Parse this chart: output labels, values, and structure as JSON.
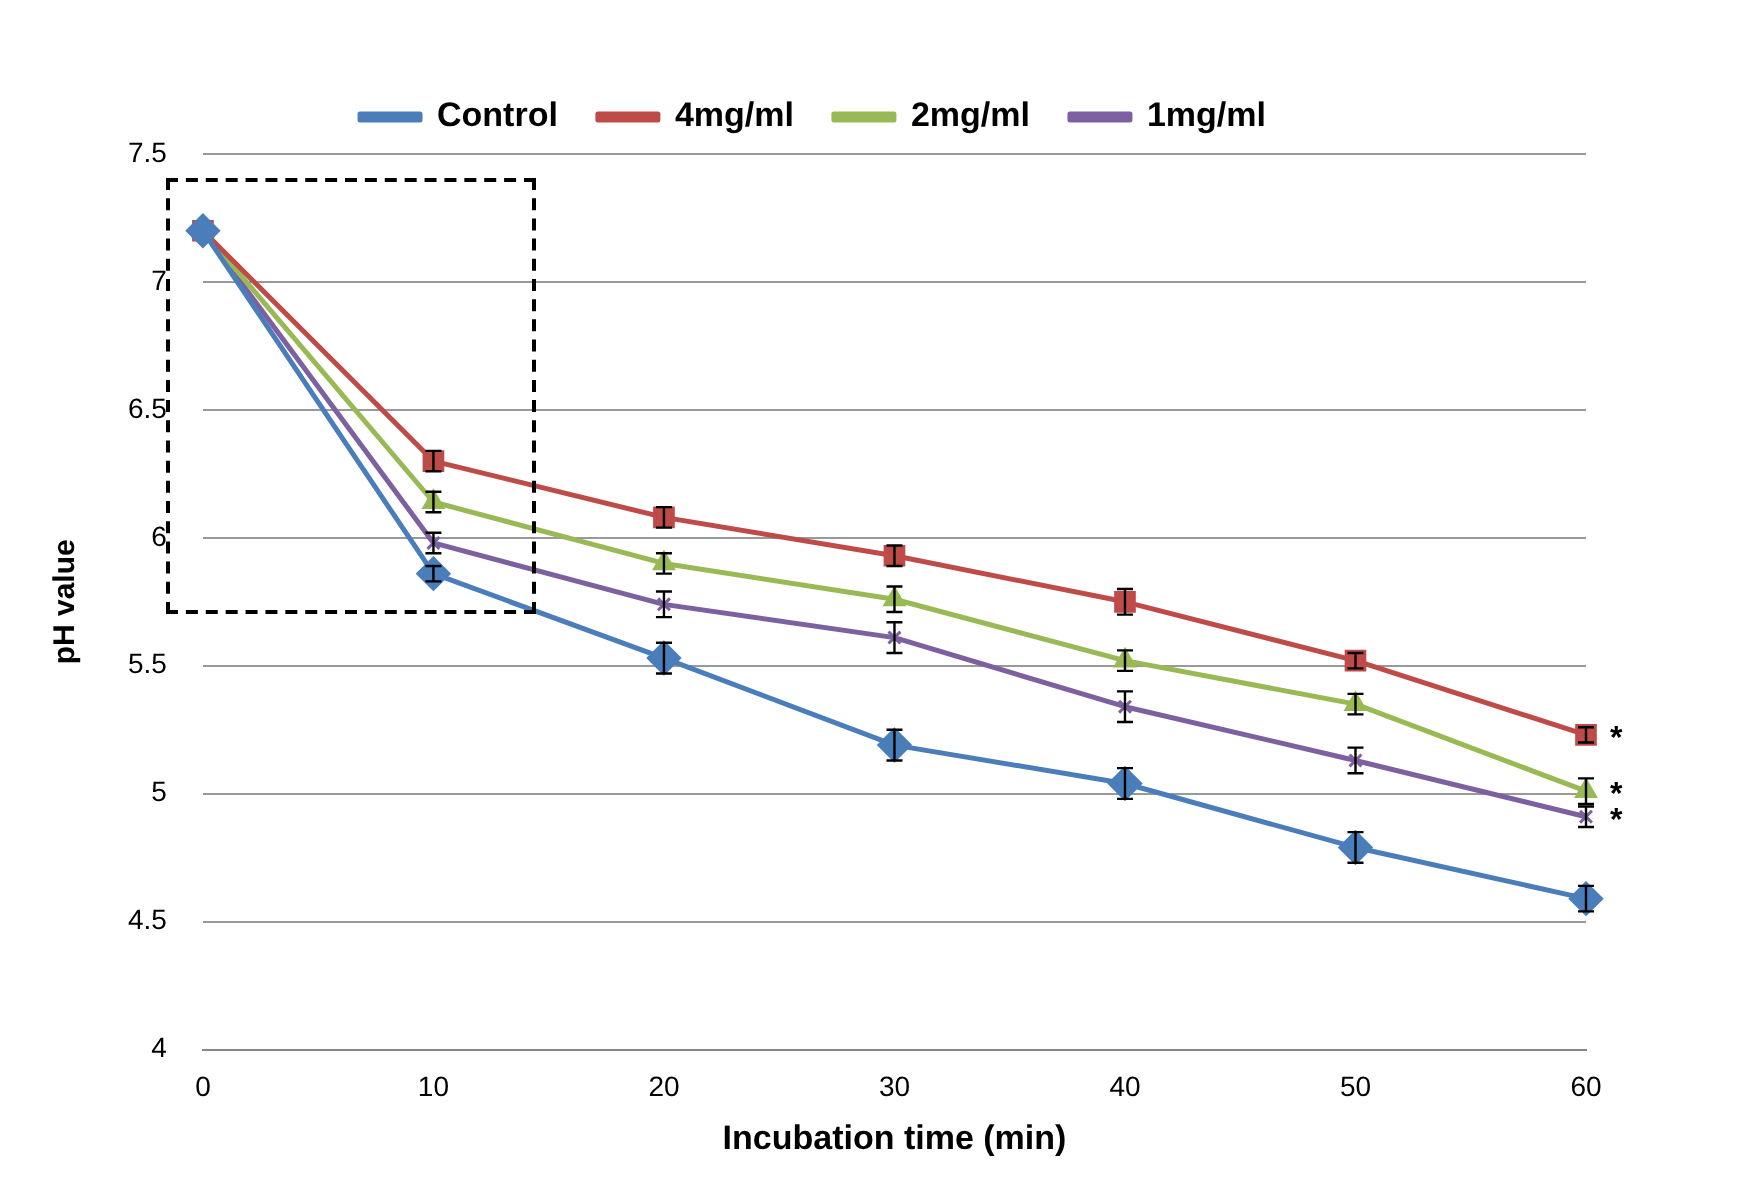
{
  "chart_data": {
    "type": "line",
    "xlabel": "Incubation time (min)",
    "ylabel": "pH value",
    "categories": [
      "0",
      "10",
      "20",
      "30",
      "40",
      "50",
      "60"
    ],
    "ylim": [
      4,
      7.5
    ],
    "yticks": [
      4,
      4.5,
      5,
      5.5,
      6,
      6.5,
      7,
      7.5
    ],
    "grid": "y",
    "legend": "top",
    "line_style": "solid",
    "series": [
      {
        "name": "Control",
        "color": "#4a7ebb",
        "marker": "diamond",
        "values": [
          7.2,
          5.86,
          5.53,
          5.19,
          5.04,
          4.79,
          4.59
        ],
        "errors": [
          null,
          0.03,
          0.06,
          0.06,
          0.06,
          0.06,
          0.05
        ]
      },
      {
        "name": "4mg/ml",
        "color": "#be4b48",
        "marker": "square",
        "values": [
          7.2,
          6.3,
          6.08,
          5.93,
          5.75,
          5.52,
          5.23
        ],
        "errors": [
          null,
          0.04,
          0.04,
          0.04,
          0.05,
          0.03,
          0.03
        ]
      },
      {
        "name": "2mg/ml",
        "color": "#98b954",
        "marker": "triangle",
        "values": [
          7.2,
          6.14,
          5.9,
          5.76,
          5.52,
          5.35,
          5.01
        ],
        "errors": [
          null,
          0.04,
          0.04,
          0.05,
          0.04,
          0.04,
          0.05
        ]
      },
      {
        "name": "1mg/ml",
        "color": "#7d60a0",
        "marker": "cross",
        "values": [
          7.2,
          5.98,
          5.74,
          5.61,
          5.34,
          5.13,
          4.91
        ],
        "errors": [
          null,
          0.04,
          0.05,
          0.06,
          0.06,
          0.05,
          0.04
        ]
      }
    ],
    "annotations": [
      {
        "text": "*",
        "x": "60",
        "y": 5.23
      },
      {
        "text": "*",
        "x": "60",
        "y": 5.01
      },
      {
        "text": "*",
        "x": "60",
        "y": 4.91
      }
    ]
  }
}
